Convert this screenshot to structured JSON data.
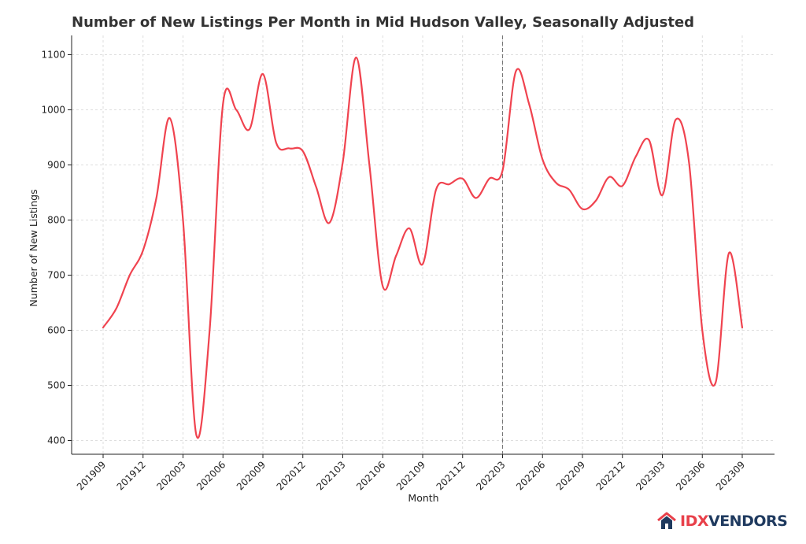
{
  "chart_data": {
    "type": "line",
    "title": "Number of New Listings Per Month in Mid Hudson Valley, Seasonally Adjusted",
    "xlabel": "Month",
    "ylabel": "Number of New Listings",
    "ylim": [
      375,
      1135
    ],
    "yticks": [
      400,
      500,
      600,
      700,
      800,
      900,
      1000,
      1100
    ],
    "xticks": [
      "201909",
      "201912",
      "202003",
      "202006",
      "202009",
      "202012",
      "202103",
      "202106",
      "202109",
      "202112",
      "202203",
      "202206",
      "202209",
      "202212",
      "202303",
      "202306",
      "202309"
    ],
    "grid": true,
    "reference_line": {
      "x": "202203",
      "style": "dashed"
    },
    "series": [
      {
        "color": "#f0434f",
        "x": [
          "201909",
          "201910",
          "201911",
          "201912",
          "202001",
          "202002",
          "202003",
          "202004",
          "202005",
          "202006",
          "202007",
          "202008",
          "202009",
          "202010",
          "202011",
          "202012",
          "202101",
          "202102",
          "202103",
          "202104",
          "202105",
          "202106",
          "202107",
          "202108",
          "202109",
          "202110",
          "202111",
          "202112",
          "202201",
          "202202",
          "202203",
          "202204",
          "202205",
          "202206",
          "202207",
          "202208",
          "202209",
          "202210",
          "202211",
          "202212",
          "202301",
          "202302",
          "202303",
          "202304",
          "202305",
          "202306",
          "202307",
          "202308",
          "202309"
        ],
        "values": [
          605,
          640,
          700,
          745,
          840,
          985,
          800,
          410,
          600,
          1010,
          1000,
          965,
          1065,
          940,
          930,
          925,
          860,
          795,
          905,
          1095,
          900,
          680,
          735,
          785,
          720,
          855,
          865,
          875,
          840,
          875,
          890,
          1070,
          1010,
          910,
          868,
          855,
          820,
          835,
          878,
          862,
          915,
          945,
          845,
          982,
          905,
          600,
          505,
          740,
          605
        ]
      }
    ]
  },
  "branding": {
    "logo_idx": "IDX",
    "logo_vendors": "VENDORS",
    "logo_icon": "house-icon",
    "idx_color": "#e8404a",
    "vendors_color": "#1f3a5f"
  }
}
